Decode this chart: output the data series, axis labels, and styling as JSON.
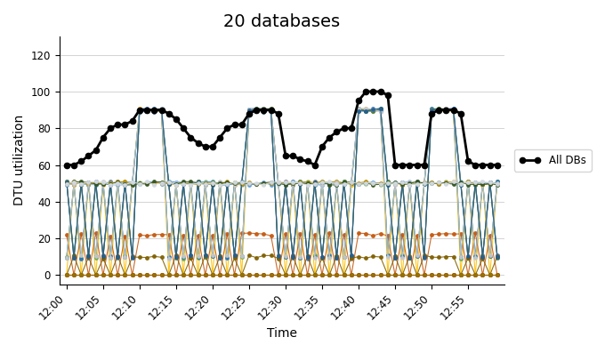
{
  "title": "20 databases",
  "xlabel": "Time",
  "ylabel": "DTU utilization",
  "ylim": [
    -5,
    130
  ],
  "yticks": [
    0,
    20,
    40,
    60,
    80,
    100,
    120
  ],
  "time_labels": [
    "12:00",
    "12:05",
    "12:10",
    "12:15",
    "12:20",
    "12:25",
    "12:30",
    "12:35",
    "12:40",
    "12:45",
    "12:50",
    "12:55"
  ],
  "n_points": 60,
  "points_per_label": 5,
  "aggregate_line": [
    60,
    60,
    62,
    65,
    68,
    75,
    80,
    82,
    82,
    84,
    90,
    90,
    90,
    90,
    88,
    85,
    80,
    75,
    72,
    70,
    70,
    75,
    80,
    82,
    82,
    88,
    90,
    90,
    90,
    88,
    65,
    65,
    63,
    62,
    60,
    70,
    75,
    78,
    80,
    80,
    95,
    100,
    100,
    100,
    98,
    60,
    60,
    60,
    60,
    60,
    88,
    90,
    90,
    90,
    88,
    62,
    60,
    60,
    60,
    60
  ],
  "db_colors": [
    "#4472C4",
    "#ED7D31",
    "#A9D18E",
    "#FFC000",
    "#5B9BD5",
    "#70AD47",
    "#FF0000",
    "#7F7F7F",
    "#9DC3E6",
    "#C55A11",
    "#843C0C",
    "#2E75B6",
    "#548235",
    "#806000",
    "#BF8F00",
    "#C9C9C9",
    "#255E91",
    "#375623",
    "#997300",
    "#D6DCE4"
  ],
  "legend_label": "All DBs",
  "bg_color": "#FFFFFF",
  "grid_color": "#D3D3D3",
  "title_fontsize": 14,
  "axis_fontsize": 10,
  "tick_fontsize": 8.5
}
